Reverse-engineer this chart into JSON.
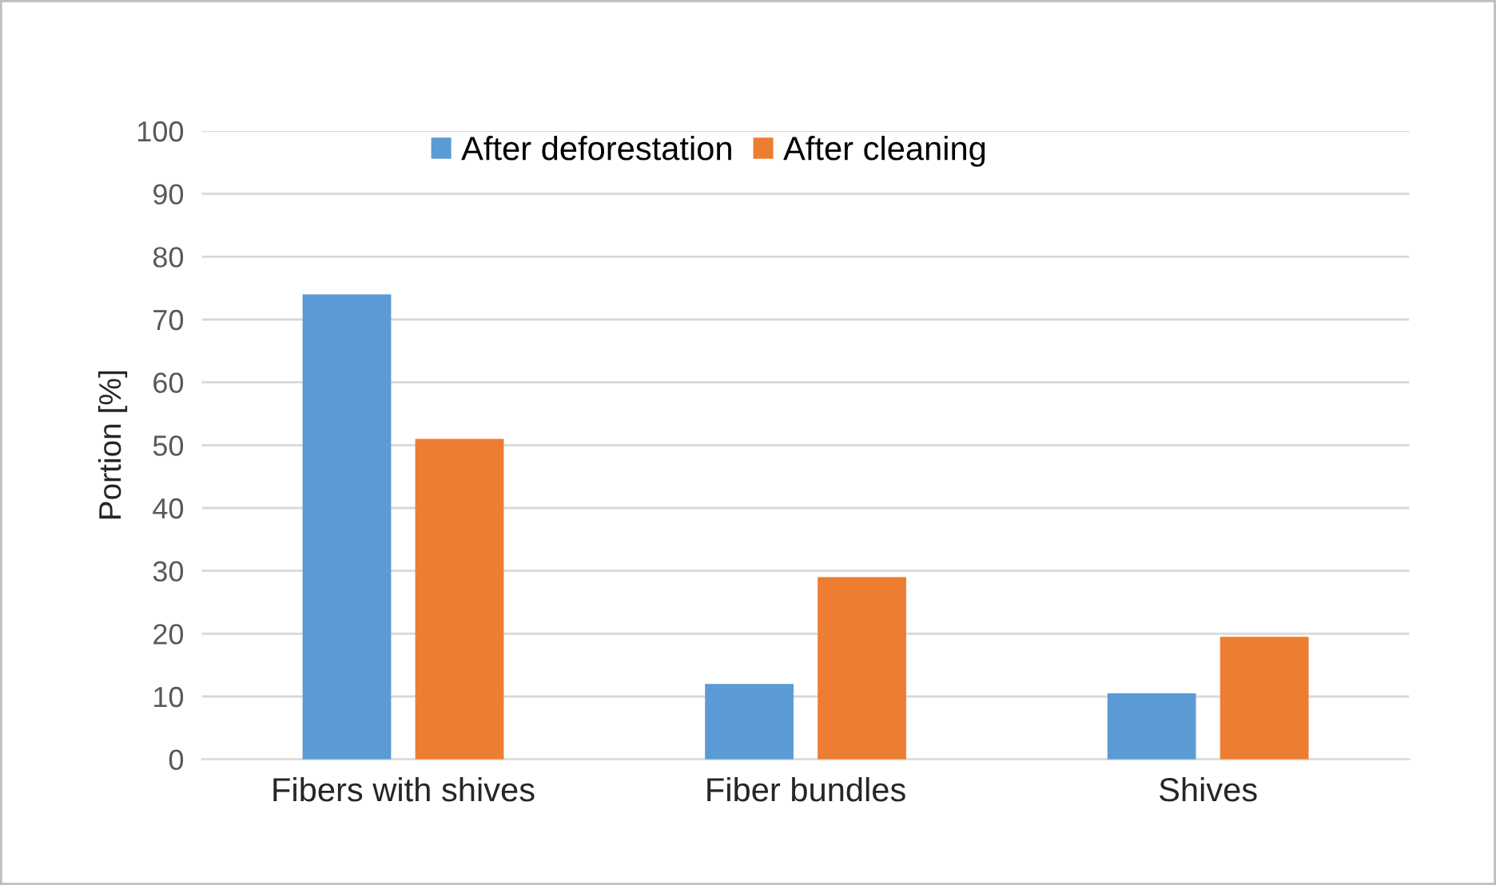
{
  "chart_data": {
    "type": "bar",
    "ylabel": "Portion [%]",
    "categories": [
      "Fibers with shives",
      "Fiber bundles",
      "Shives"
    ],
    "series": [
      {
        "name": "After deforestation",
        "color": "#5b9bd5",
        "values": [
          74,
          12,
          10.5
        ]
      },
      {
        "name": "After cleaning",
        "color": "#ed7d31",
        "values": [
          51,
          29,
          19.5
        ]
      }
    ],
    "ylim": [
      0,
      100
    ],
    "yticks": [
      0,
      10,
      20,
      30,
      40,
      50,
      60,
      70,
      80,
      90,
      100
    ],
    "grid": "y",
    "legend": "top"
  }
}
